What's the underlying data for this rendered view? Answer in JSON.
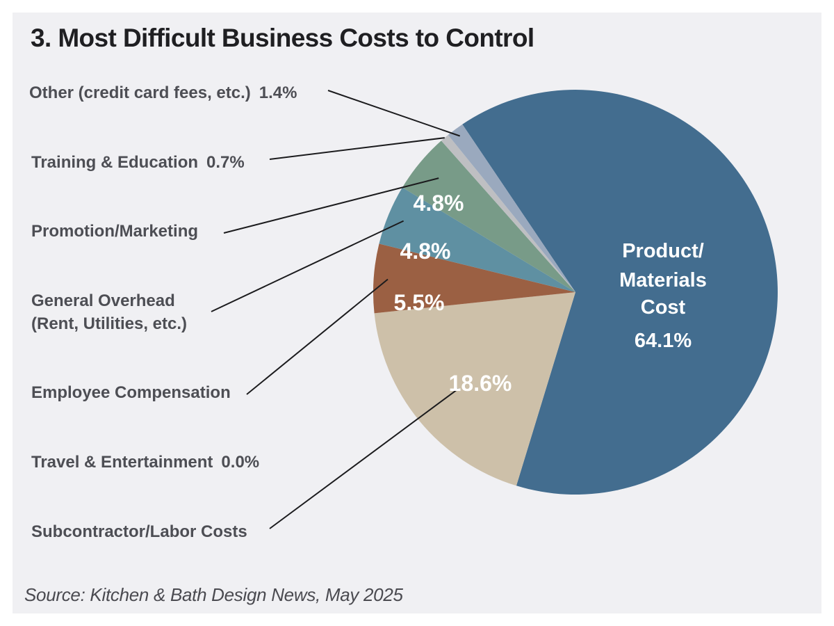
{
  "chart_data": {
    "type": "pie",
    "title": "3. Most Difficult Business Costs to Control",
    "source": "Source: Kitchen & Bath Design News, May 2025",
    "unit": "%",
    "slices": [
      {
        "key": "product",
        "label": "Product/Materials Cost",
        "value": 64.1,
        "color": "#436d8f",
        "display": "64.1%",
        "label_lines": [
          "Product/",
          "Materials",
          "Cost"
        ]
      },
      {
        "key": "subcontractor",
        "label": "Subcontractor/Labor Costs",
        "value": 18.6,
        "color": "#cdc0a9",
        "display": "18.6%",
        "label_lines": [
          "Subcontractor/Labor Costs"
        ]
      },
      {
        "key": "travel",
        "label": "Travel & Entertainment",
        "value": 0.0,
        "color": "#bdbdbf",
        "display": "0.0%",
        "label_lines": [
          "Travel & Entertainment"
        ]
      },
      {
        "key": "employee",
        "label": "Employee Compensation",
        "value": 5.5,
        "color": "#9b6043",
        "display": "5.5%",
        "label_lines": [
          "Employee Compensation"
        ]
      },
      {
        "key": "overhead",
        "label": "General Overhead (Rent, Utilities, etc.)",
        "value": 4.8,
        "color": "#5f90a2",
        "display": "4.8%",
        "label_lines": [
          "General Overhead",
          "(Rent, Utilities, etc.)"
        ]
      },
      {
        "key": "promotion",
        "label": "Promotion/Marketing",
        "value": 4.8,
        "color": "#789b88",
        "display": "4.8%",
        "label_lines": [
          "Promotion/Marketing"
        ]
      },
      {
        "key": "training",
        "label": "Training & Education",
        "value": 0.7,
        "color": "#bebfc2",
        "display": "0.7%",
        "label_lines": [
          "Training & Education"
        ]
      },
      {
        "key": "other",
        "label": "Other (credit card fees, etc.)",
        "value": 1.4,
        "color": "#9aa9be",
        "display": "1.4%",
        "label_lines": [
          "Other (credit card fees, etc.)"
        ]
      }
    ],
    "label_placement": "left-callouts"
  }
}
